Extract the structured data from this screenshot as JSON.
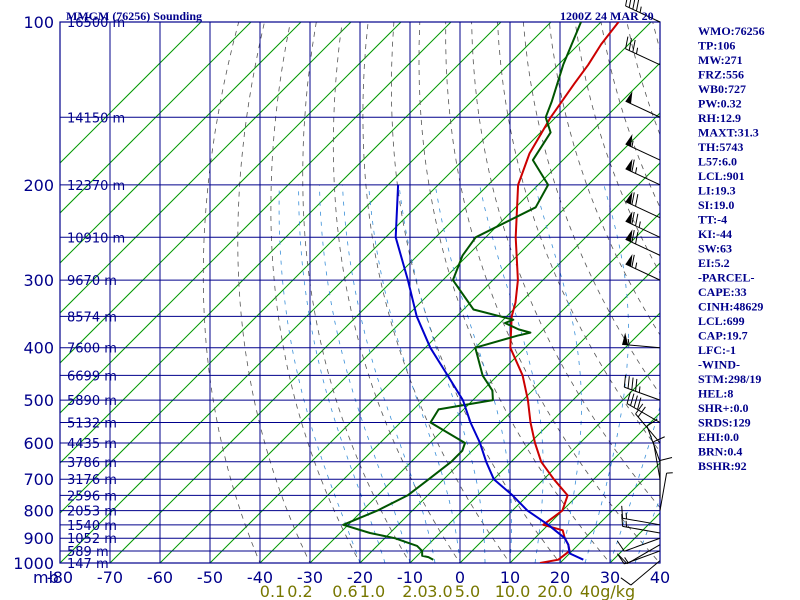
{
  "header": {
    "station": "MMGM (76256) Sounding",
    "time": "1200Z 24 MAR 20"
  },
  "colors": {
    "frame": "#00008b",
    "isotherm": "#009900",
    "dry_adiabat": "#555555",
    "moist_adiabat": "#3a8fd8",
    "temperature": "#cc0000",
    "dewpoint": "#005500",
    "parcel": "#0000cc",
    "wind_barb": "#000000"
  },
  "indices": [
    "WMO:76256",
    "TP:106",
    "MW:271",
    "FRZ:556",
    "WB0:727",
    "PW:0.32",
    "RH:12.9",
    "MAXT:31.3",
    "TH:5743",
    "L57:6.0",
    "LCL:901",
    "LI:19.3",
    "SI:19.0",
    "TT:-4",
    "KI:-44",
    "SW:63",
    "EI:5.2",
    "-PARCEL-",
    "CAPE:33",
    "CINH:48629",
    "LCL:699",
    "CAP:19.7",
    "LFC:-1",
    "-WIND-",
    "STM:298/19",
    "HEL:8",
    "SHR+:0.0",
    "SRDS:129",
    "EHI:0.0",
    "BRN:0.4",
    "BSHR:92"
  ],
  "chart_data": {
    "type": "line",
    "title": "MMGM (76256) Sounding",
    "subtitle": "1200Z 24 MAR 20",
    "y_axis": {
      "unit": "mb",
      "scale": "log",
      "ylim": [
        1000,
        100
      ],
      "ticks": [
        100,
        200,
        300,
        400,
        500,
        600,
        700,
        800,
        900,
        1000
      ]
    },
    "x_axis": {
      "unit": "C",
      "xlim": [
        -80,
        40
      ],
      "ticks": [
        -80,
        -70,
        -60,
        -50,
        -40,
        -30,
        -20,
        -10,
        0,
        10,
        20,
        30,
        40
      ]
    },
    "mixing_ratio_labels": [
      {
        "label": "0.1",
        "temp_c": -37.5
      },
      {
        "label": "0.2",
        "temp_c": -32
      },
      {
        "label": "0.6",
        "temp_c": -23
      },
      {
        "label": "1.0",
        "temp_c": -17.5
      },
      {
        "label": "2.0",
        "temp_c": -9
      },
      {
        "label": "3.0",
        "temp_c": -4
      },
      {
        "label": "5.0",
        "temp_c": 1.5
      },
      {
        "label": "10.0",
        "temp_c": 10.5
      },
      {
        "label": "20.0",
        "temp_c": 19
      },
      {
        "label": "40g/kg",
        "temp_c": 29.5
      }
    ],
    "height_labels": [
      {
        "p": 100,
        "label": "16500 m"
      },
      {
        "p": 150,
        "label": "14150 m"
      },
      {
        "p": 200,
        "label": "12370 m"
      },
      {
        "p": 250,
        "label": "10910 m"
      },
      {
        "p": 300,
        "label": "9670 m"
      },
      {
        "p": 350,
        "label": "8574 m"
      },
      {
        "p": 400,
        "label": "7600 m"
      },
      {
        "p": 450,
        "label": "6699 m"
      },
      {
        "p": 500,
        "label": "5890 m"
      },
      {
        "p": 550,
        "label": "5132 m"
      },
      {
        "p": 600,
        "label": "4435 m"
      },
      {
        "p": 650,
        "label": "3786 m"
      },
      {
        "p": 700,
        "label": "3176 m"
      },
      {
        "p": 750,
        "label": "2596 m"
      },
      {
        "p": 800,
        "label": "2053 m"
      },
      {
        "p": 850,
        "label": "1540 m"
      },
      {
        "p": 900,
        "label": "1052 m"
      },
      {
        "p": 950,
        "label": "589 m"
      },
      {
        "p": 1000,
        "label": "147 m"
      }
    ],
    "series": [
      {
        "key": "temperature",
        "points": [
          [
            1000,
            16
          ],
          [
            986,
            19
          ],
          [
            950,
            19.5
          ],
          [
            925,
            18
          ],
          [
            900,
            16
          ],
          [
            870,
            14
          ],
          [
            850,
            9
          ],
          [
            800,
            10
          ],
          [
            750,
            8
          ],
          [
            700,
            2
          ],
          [
            650,
            -4
          ],
          [
            600,
            -9
          ],
          [
            550,
            -14
          ],
          [
            500,
            -19
          ],
          [
            450,
            -25
          ],
          [
            400,
            -33
          ],
          [
            350,
            -39
          ],
          [
            330,
            -41
          ],
          [
            300,
            -45
          ],
          [
            250,
            -54
          ],
          [
            200,
            -64
          ],
          [
            175,
            -68
          ],
          [
            150,
            -71
          ],
          [
            130,
            -73
          ],
          [
            120,
            -74
          ],
          [
            110,
            -75.5
          ],
          [
            100,
            -76.5
          ]
        ]
      },
      {
        "key": "dewpoint",
        "points": [
          [
            986,
            -6
          ],
          [
            975,
            -7.5
          ],
          [
            970,
            -9
          ],
          [
            950,
            -10
          ],
          [
            930,
            -12
          ],
          [
            900,
            -18
          ],
          [
            880,
            -24
          ],
          [
            850,
            -31
          ],
          [
            800,
            -27
          ],
          [
            750,
            -24
          ],
          [
            700,
            -23
          ],
          [
            650,
            -22
          ],
          [
            620,
            -22
          ],
          [
            600,
            -23
          ],
          [
            550,
            -34
          ],
          [
            520,
            -35
          ],
          [
            500,
            -26
          ],
          [
            480,
            -28
          ],
          [
            450,
            -33
          ],
          [
            400,
            -40
          ],
          [
            380,
            -34
          ],
          [
            375,
            -32
          ],
          [
            370,
            -35
          ],
          [
            360,
            -39
          ],
          [
            355,
            -38
          ],
          [
            340,
            -48
          ],
          [
            300,
            -58
          ],
          [
            270,
            -61
          ],
          [
            250,
            -62
          ],
          [
            220,
            -56
          ],
          [
            200,
            -58
          ],
          [
            180,
            -66
          ],
          [
            160,
            -68
          ],
          [
            150,
            -72
          ],
          [
            140,
            -74
          ],
          [
            120,
            -79
          ],
          [
            100,
            -84
          ]
        ]
      },
      {
        "key": "parcel",
        "points": [
          [
            986,
            24
          ],
          [
            960,
            20
          ],
          [
            925,
            18
          ],
          [
            900,
            16
          ],
          [
            850,
            10
          ],
          [
            800,
            3
          ],
          [
            750,
            -3
          ],
          [
            700,
            -10
          ],
          [
            650,
            -15
          ],
          [
            600,
            -20
          ],
          [
            550,
            -26
          ],
          [
            500,
            -32
          ],
          [
            450,
            -40
          ],
          [
            400,
            -49
          ],
          [
            350,
            -58
          ],
          [
            300,
            -67
          ],
          [
            250,
            -78
          ],
          [
            200,
            -88
          ]
        ]
      }
    ],
    "wind_barbs": [
      {
        "p": 990,
        "dir": 230,
        "spd": 10
      },
      {
        "p": 950,
        "dir": 250,
        "spd": 15
      },
      {
        "p": 925,
        "dir": 240,
        "spd": 10
      },
      {
        "p": 900,
        "dir": 250,
        "spd": 10
      },
      {
        "p": 880,
        "dir": 280,
        "spd": 15
      },
      {
        "p": 850,
        "dir": 280,
        "spd": 15
      },
      {
        "p": 800,
        "dir": 10,
        "spd": 5
      },
      {
        "p": 760,
        "dir": 360,
        "spd": 10
      },
      {
        "p": 700,
        "dir": 350,
        "spd": 10
      },
      {
        "p": 650,
        "dir": 340,
        "spd": 10
      },
      {
        "p": 600,
        "dir": 320,
        "spd": 20
      },
      {
        "p": 550,
        "dir": 300,
        "spd": 40
      },
      {
        "p": 500,
        "dir": 290,
        "spd": 45
      },
      {
        "p": 400,
        "dir": 275,
        "spd": 55
      },
      {
        "p": 300,
        "dir": 295,
        "spd": 65
      },
      {
        "p": 270,
        "dir": 295,
        "spd": 70
      },
      {
        "p": 250,
        "dir": 295,
        "spd": 75
      },
      {
        "p": 230,
        "dir": 295,
        "spd": 70
      },
      {
        "p": 200,
        "dir": 295,
        "spd": 65
      },
      {
        "p": 180,
        "dir": 295,
        "spd": 55
      },
      {
        "p": 150,
        "dir": 295,
        "spd": 50
      },
      {
        "p": 120,
        "dir": 295,
        "spd": 35
      },
      {
        "p": 100,
        "dir": 295,
        "spd": 45
      }
    ]
  }
}
